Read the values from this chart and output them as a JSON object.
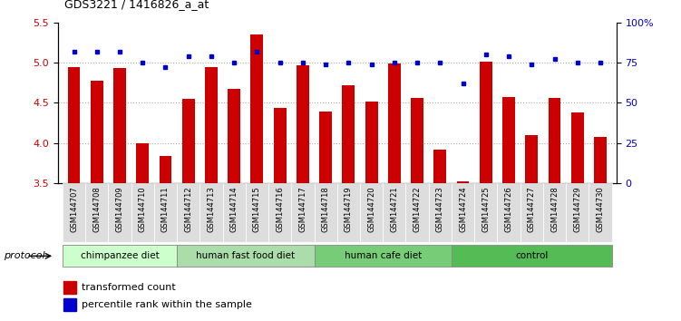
{
  "title": "GDS3221 / 1416826_a_at",
  "samples": [
    "GSM144707",
    "GSM144708",
    "GSM144709",
    "GSM144710",
    "GSM144711",
    "GSM144712",
    "GSM144713",
    "GSM144714",
    "GSM144715",
    "GSM144716",
    "GSM144717",
    "GSM144718",
    "GSM144719",
    "GSM144720",
    "GSM144721",
    "GSM144722",
    "GSM144723",
    "GSM144724",
    "GSM144725",
    "GSM144726",
    "GSM144727",
    "GSM144728",
    "GSM144729",
    "GSM144730"
  ],
  "bar_values": [
    4.94,
    4.78,
    4.93,
    3.99,
    3.84,
    4.55,
    4.94,
    4.67,
    5.35,
    4.44,
    4.97,
    4.39,
    4.72,
    4.51,
    4.99,
    4.56,
    3.91,
    3.52,
    5.01,
    4.57,
    4.1,
    4.56,
    4.38,
    4.07
  ],
  "percentile_values": [
    82,
    82,
    82,
    75,
    72,
    79,
    79,
    75,
    82,
    75,
    75,
    74,
    75,
    74,
    75,
    75,
    75,
    62,
    80,
    79,
    74,
    77,
    75,
    75
  ],
  "bar_color": "#cc0000",
  "dot_color": "#0000cc",
  "ylim_left": [
    3.5,
    5.5
  ],
  "ylim_right": [
    0,
    100
  ],
  "yticks_left": [
    3.5,
    4.0,
    4.5,
    5.0,
    5.5
  ],
  "yticks_right": [
    0,
    25,
    50,
    75,
    100
  ],
  "groups": [
    {
      "label": "chimpanzee diet",
      "start": 0,
      "end": 5
    },
    {
      "label": "human fast food diet",
      "start": 5,
      "end": 11
    },
    {
      "label": "human cafe diet",
      "start": 11,
      "end": 17
    },
    {
      "label": "control",
      "start": 17,
      "end": 24
    }
  ],
  "group_colors": [
    "#ccffcc",
    "#aaddaa",
    "#77cc77",
    "#55bb55"
  ],
  "legend_items": [
    {
      "label": "transformed count",
      "color": "#cc0000"
    },
    {
      "label": "percentile rank within the sample",
      "color": "#0000cc"
    }
  ],
  "xlabel_protocol": "protocol",
  "background_color": "#ffffff",
  "grid_color": "#aaaaaa",
  "tick_label_fontsize": 6.0,
  "bar_width": 0.55,
  "label_bg_color": "#dddddd"
}
